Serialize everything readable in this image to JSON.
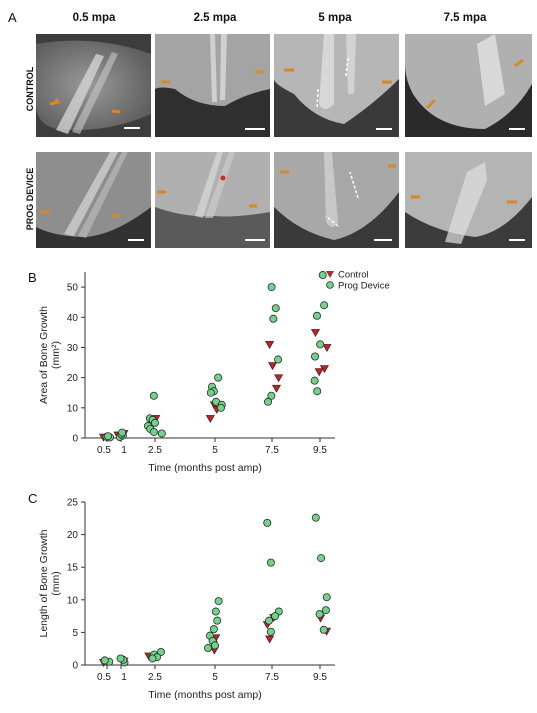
{
  "panel_a": {
    "letter": "A",
    "columns": [
      "0.5 mpa",
      "2.5 mpa",
      "5 mpa",
      "7.5 mpa"
    ],
    "rows": [
      "CONTROL",
      "PROG DEVICE"
    ]
  },
  "panel_b": {
    "letter": "B"
  },
  "panel_c": {
    "letter": "C"
  },
  "chart_data": [
    {
      "type": "scatter",
      "xlabel": "Time (months post amp)",
      "ylabel": "Area of Bone Growth (mm²)",
      "ylabel_lines": [
        "Area of Bone Growth",
        "(mm²)"
      ],
      "x_ticks": [
        "0.5",
        "1",
        "2.5",
        "5",
        "7.5",
        "9.5"
      ],
      "y_ticks": [
        0,
        10,
        20,
        30,
        40,
        50
      ],
      "ylim": [
        0,
        55
      ],
      "legend": {
        "placement": "top-right",
        "entries": [
          "Control",
          "Prog Device"
        ]
      },
      "series": [
        {
          "name": "Control",
          "color": "#b3262a",
          "marker": "triangle-down",
          "points": [
            [
              0.5,
              0.3
            ],
            [
              1,
              1.5
            ],
            [
              1,
              1.0
            ],
            [
              2.5,
              6.5
            ],
            [
              2.5,
              5.0
            ],
            [
              5,
              11
            ],
            [
              5,
              9.5
            ],
            [
              5,
              6.5
            ],
            [
              7.5,
              31
            ],
            [
              7.5,
              24
            ],
            [
              7.5,
              20
            ],
            [
              7.5,
              16.5
            ],
            [
              9.5,
              35
            ],
            [
              9.5,
              30
            ],
            [
              9.5,
              23
            ],
            [
              9.5,
              22
            ]
          ]
        },
        {
          "name": "Prog Device",
          "color": "#6fd48a",
          "marker": "circle",
          "points": [
            [
              0.5,
              0.2
            ],
            [
              0.5,
              0.4
            ],
            [
              0.5,
              0.6
            ],
            [
              1,
              0.3
            ],
            [
              1,
              0.8
            ],
            [
              1,
              1.2
            ],
            [
              1,
              1.8
            ],
            [
              2.5,
              14
            ],
            [
              2.5,
              6.5
            ],
            [
              2.5,
              6
            ],
            [
              2.5,
              5
            ],
            [
              2.5,
              4
            ],
            [
              2.5,
              3
            ],
            [
              2.5,
              2
            ],
            [
              2.5,
              1.5
            ],
            [
              5,
              20
            ],
            [
              5,
              17
            ],
            [
              5,
              15.5
            ],
            [
              5,
              15
            ],
            [
              5,
              12
            ],
            [
              5,
              11
            ],
            [
              5,
              10
            ],
            [
              7.5,
              50
            ],
            [
              7.5,
              43
            ],
            [
              7.5,
              39.5
            ],
            [
              7.5,
              26
            ],
            [
              7.5,
              14
            ],
            [
              7.5,
              12
            ],
            [
              9.5,
              54
            ],
            [
              9.5,
              44
            ],
            [
              9.5,
              40.5
            ],
            [
              9.5,
              31
            ],
            [
              9.5,
              27
            ],
            [
              9.5,
              19
            ],
            [
              9.5,
              15.5
            ]
          ]
        }
      ]
    },
    {
      "type": "scatter",
      "xlabel": "Time (months post amp)",
      "ylabel": "Length of Bone Growth (mm)",
      "ylabel_lines": [
        "Length of Bone Growth",
        "(mm)"
      ],
      "x_ticks": [
        "0.5",
        "1",
        "2.5",
        "5",
        "7.5",
        "9.5"
      ],
      "y_ticks": [
        0,
        5,
        10,
        15,
        20,
        25
      ],
      "ylim": [
        0,
        25
      ],
      "series": [
        {
          "name": "Control",
          "color": "#b3262a",
          "marker": "triangle-down",
          "points": [
            [
              0.5,
              0.4
            ],
            [
              1,
              0.6
            ],
            [
              2.5,
              1.4
            ],
            [
              5,
              4.2
            ],
            [
              5,
              3.2
            ],
            [
              5,
              2.3
            ],
            [
              7.5,
              7.3
            ],
            [
              7.5,
              6.2
            ],
            [
              7.5,
              4.0
            ],
            [
              9.5,
              7.2
            ],
            [
              9.5,
              5.2
            ]
          ]
        },
        {
          "name": "Prog Device",
          "color": "#6fd48a",
          "marker": "circle",
          "points": [
            [
              0.5,
              0.5
            ],
            [
              0.5,
              0.7
            ],
            [
              1,
              0.4
            ],
            [
              1,
              0.8
            ],
            [
              1,
              1.0
            ],
            [
              2.5,
              2.0
            ],
            [
              2.5,
              1.6
            ],
            [
              2.5,
              1.2
            ],
            [
              2.5,
              1.0
            ],
            [
              5,
              9.8
            ],
            [
              5,
              8.2
            ],
            [
              5,
              6.8
            ],
            [
              5,
              5.5
            ],
            [
              5,
              4.5
            ],
            [
              5,
              3.7
            ],
            [
              5,
              3.0
            ],
            [
              5,
              2.6
            ],
            [
              7.5,
              21.8
            ],
            [
              7.5,
              15.7
            ],
            [
              7.5,
              8.2
            ],
            [
              7.5,
              7.5
            ],
            [
              7.5,
              6.8
            ],
            [
              7.5,
              5.1
            ],
            [
              9.5,
              22.6
            ],
            [
              9.5,
              16.4
            ],
            [
              9.5,
              10.4
            ],
            [
              9.5,
              8.4
            ],
            [
              9.5,
              7.8
            ],
            [
              9.5,
              5.4
            ]
          ]
        }
      ]
    }
  ]
}
